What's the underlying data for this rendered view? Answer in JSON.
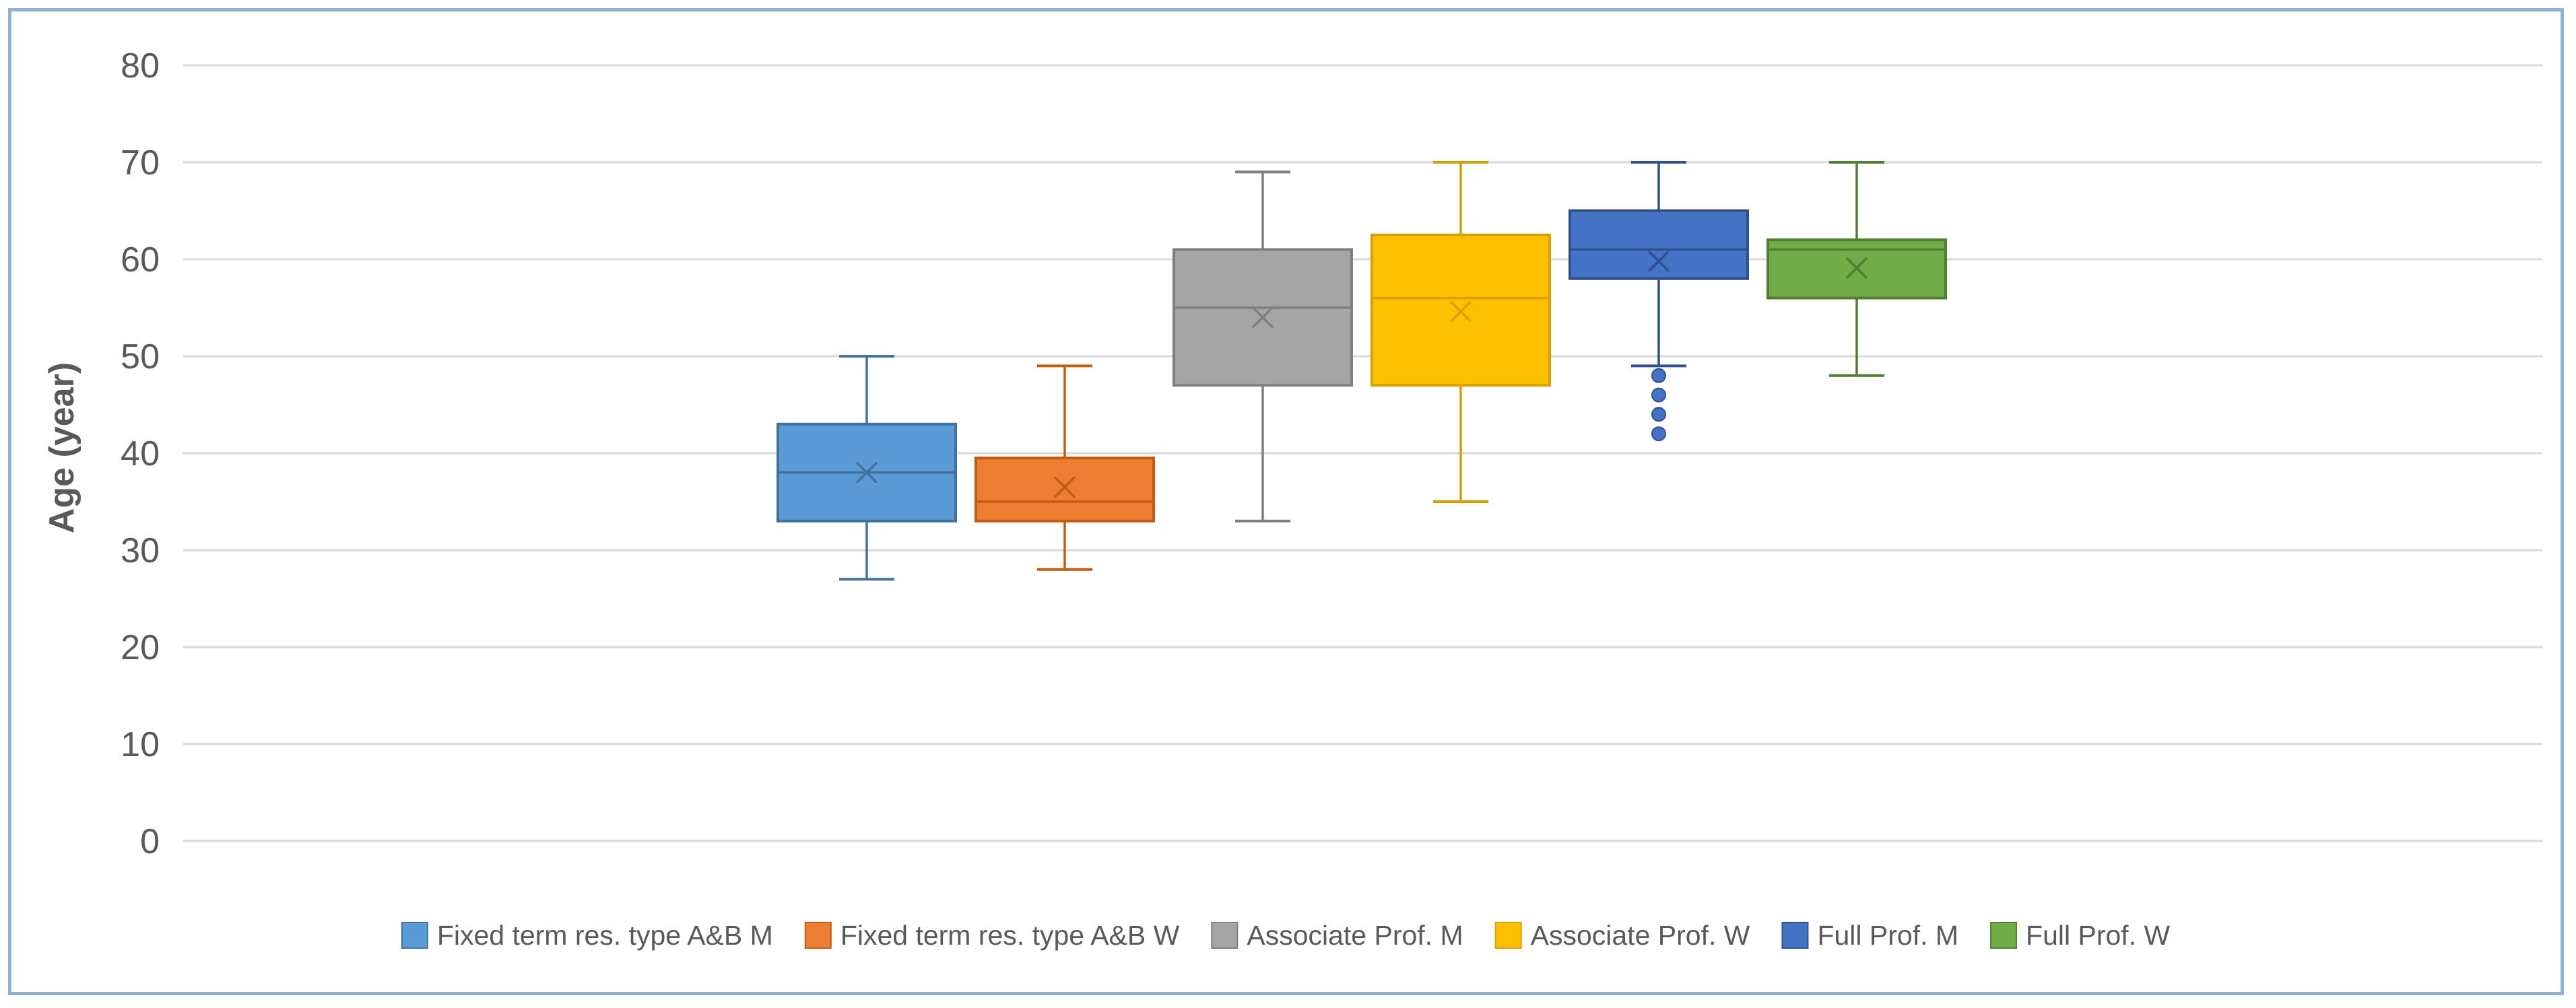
{
  "chart_data": {
    "type": "boxplot",
    "title": "",
    "xlabel": "",
    "ylabel": "Age (year)",
    "ylim": [
      0,
      80
    ],
    "yticks": [
      0,
      10,
      20,
      30,
      40,
      50,
      60,
      70,
      80
    ],
    "grid": true,
    "legend_position": "bottom",
    "series": [
      {
        "name": "Fixed term res. type A&B M",
        "color": "#5b9bd5",
        "stroke": "#41719c",
        "min": 27,
        "q1": 33,
        "median": 38,
        "q3": 43,
        "max": 50,
        "mean": 38,
        "outliers": []
      },
      {
        "name": "Fixed term res. type A&B W",
        "color": "#ed7d31",
        "stroke": "#c55a11",
        "min": 28,
        "q1": 33,
        "median": 35,
        "q3": 39.5,
        "max": 49,
        "mean": 36.5,
        "outliers": []
      },
      {
        "name": "Associate Prof. M",
        "color": "#a5a5a5",
        "stroke": "#7f7f7f",
        "min": 33,
        "q1": 47,
        "median": 55,
        "q3": 61,
        "max": 69,
        "mean": 54,
        "outliers": []
      },
      {
        "name": "Associate Prof. W",
        "color": "#ffc000",
        "stroke": "#d6a100",
        "min": 35,
        "q1": 47,
        "median": 56,
        "q3": 62.5,
        "max": 70,
        "mean": 54.6,
        "outliers": []
      },
      {
        "name": "Full Prof. M",
        "color": "#4472c4",
        "stroke": "#2f528f",
        "min": 49,
        "q1": 58,
        "median": 61,
        "q3": 65,
        "max": 70,
        "mean": 59.8,
        "outliers": [
          48,
          46,
          44,
          42
        ]
      },
      {
        "name": "Full Prof. W",
        "color": "#70ad47",
        "stroke": "#507e32",
        "min": 48,
        "q1": 56,
        "median": 61,
        "q3": 62,
        "max": 70,
        "mean": 59.1,
        "outliers": []
      }
    ]
  },
  "colors": {
    "gridline": "#d9d9d9",
    "tick_text": "#595959",
    "frame_border": "#8fb1d6",
    "background": "#ffffff"
  }
}
